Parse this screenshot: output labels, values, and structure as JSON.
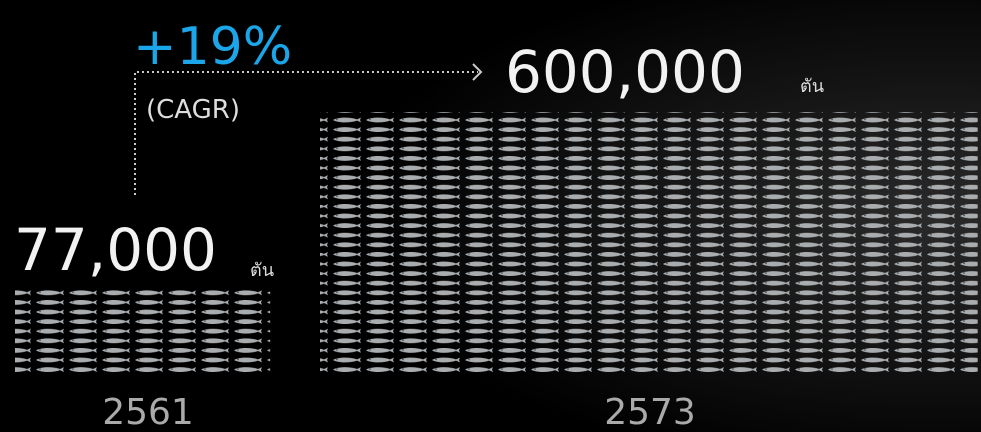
{
  "chart_data": {
    "type": "pictogram",
    "categories": [
      "2561",
      "2573"
    ],
    "values": [
      77000,
      600000
    ],
    "value_labels": [
      "77,000",
      "600,000"
    ],
    "unit": "ตัน",
    "annotation": "+19%",
    "annotation_note": "(CAGR)",
    "annotation_color": "#1ba6ea",
    "color": "#a9adb0"
  }
}
